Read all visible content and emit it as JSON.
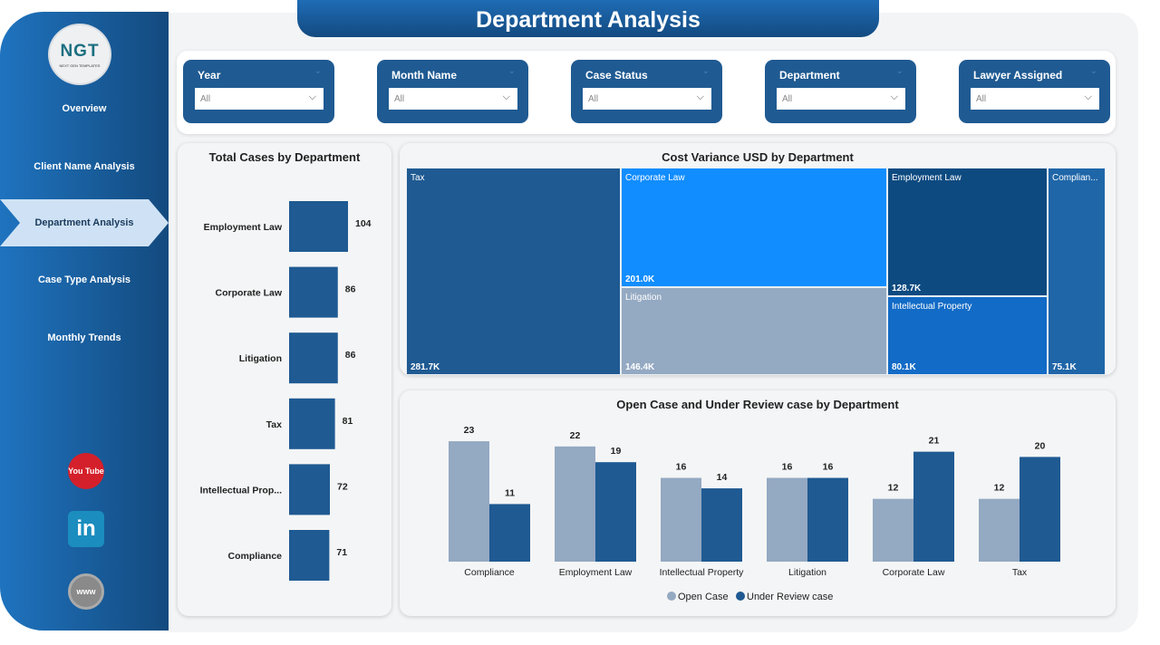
{
  "header": {
    "title": "Department Analysis"
  },
  "sidebar": {
    "logo": {
      "text": "NGT",
      "subtitle": "NEXT GEN TEMPLATES"
    },
    "items": [
      {
        "label": "Overview"
      },
      {
        "label": "Client Name Analysis"
      },
      {
        "label": "Department Analysis",
        "active": true
      },
      {
        "label": "Case Type Analysis"
      },
      {
        "label": "Monthly Trends"
      }
    ],
    "social": [
      {
        "icon": "youtube-icon",
        "text": "You Tube"
      },
      {
        "icon": "linkedin-icon",
        "text": "in"
      },
      {
        "icon": "globe-icon",
        "text": "www"
      }
    ]
  },
  "filters": [
    {
      "label": "Year",
      "value": "All"
    },
    {
      "label": "Month Name",
      "value": "All"
    },
    {
      "label": "Case Status",
      "value": "All"
    },
    {
      "label": "Department",
      "value": "All"
    },
    {
      "label": "Lawyer Assigned",
      "value": "All"
    }
  ],
  "colors": {
    "primary": "#1f5a92",
    "light": "#94a9c2",
    "accent": "#118dff"
  },
  "chart_data": [
    {
      "type": "bar",
      "orientation": "horizontal",
      "title": "Total Cases by Department",
      "categories": [
        "Employment Law",
        "Corporate Law",
        "Litigation",
        "Tax",
        "Intellectual Prop...",
        "Compliance"
      ],
      "values": [
        104,
        86,
        86,
        81,
        72,
        71
      ]
    },
    {
      "type": "treemap",
      "title": "Cost Variance USD by Department",
      "items": [
        {
          "name": "Tax",
          "value": "281.7K",
          "color": "#1f5a92"
        },
        {
          "name": "Corporate Law",
          "value": "201.0K",
          "color": "#118dff"
        },
        {
          "name": "Litigation",
          "value": "146.4K",
          "color": "#94a9c2"
        },
        {
          "name": "Employment Law",
          "value": "128.7K",
          "color": "#0d4a80"
        },
        {
          "name": "Intellectual Property",
          "value": "80.1K",
          "color": "#126bc6"
        },
        {
          "name": "Complian...",
          "value": "75.1K",
          "color": "#1f66a8"
        }
      ]
    },
    {
      "type": "bar",
      "title": "Open Case and Under Review case by Department",
      "categories": [
        "Compliance",
        "Employment Law",
        "Intellectual Property",
        "Litigation",
        "Corporate Law",
        "Tax"
      ],
      "series": [
        {
          "name": "Open Case",
          "values": [
            23,
            22,
            16,
            16,
            12,
            12
          ],
          "color": "#94a9c2"
        },
        {
          "name": "Under Review case",
          "values": [
            11,
            19,
            14,
            16,
            21,
            20
          ],
          "color": "#1f5a92"
        }
      ],
      "legend": "bottom"
    }
  ]
}
